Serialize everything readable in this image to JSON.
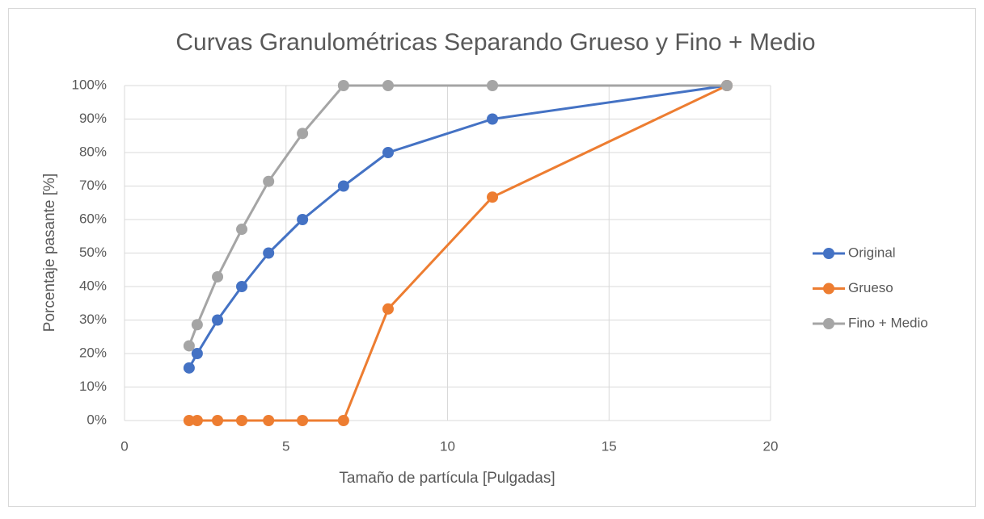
{
  "chart_data": {
    "type": "line",
    "title": "Curvas Granulométricas Separando Grueso y Fino + Medio",
    "x_label": "Tamaño de partícula [Pulgadas]",
    "y_label": "Porcentaje pasante [%]",
    "x": [
      2.0,
      2.25,
      2.88,
      3.63,
      4.46,
      5.51,
      6.78,
      8.16,
      11.39,
      18.65
    ],
    "series": [
      {
        "name": "Original",
        "color": "#4472c4",
        "values": [
          15.7,
          20,
          30,
          40,
          50,
          60,
          70,
          80,
          90,
          100
        ]
      },
      {
        "name": "Grueso",
        "color": "#ed7d31",
        "values": [
          0,
          0,
          0,
          0,
          0,
          0,
          0,
          33.3,
          66.7,
          100
        ]
      },
      {
        "name": "Fino + Medio",
        "color": "#a5a5a5",
        "values": [
          22.3,
          28.6,
          42.9,
          57.1,
          71.4,
          85.7,
          100,
          100,
          100,
          100
        ]
      }
    ],
    "xlim": [
      0,
      20
    ],
    "xticks": [
      0,
      5,
      10,
      15,
      20
    ],
    "ylim": [
      0,
      100
    ],
    "yticks": [
      {
        "value": 0,
        "label": "0%"
      },
      {
        "value": 10,
        "label": "10%"
      },
      {
        "value": 20,
        "label": "20%"
      },
      {
        "value": 30,
        "label": "30%"
      },
      {
        "value": 40,
        "label": "40%"
      },
      {
        "value": 50,
        "label": "50%"
      },
      {
        "value": 60,
        "label": "60%"
      },
      {
        "value": 70,
        "label": "70%"
      },
      {
        "value": 80,
        "label": "80%"
      },
      {
        "value": 90,
        "label": "90%"
      },
      {
        "value": 100,
        "label": "100%"
      }
    ],
    "grid": true,
    "legend": "right"
  }
}
